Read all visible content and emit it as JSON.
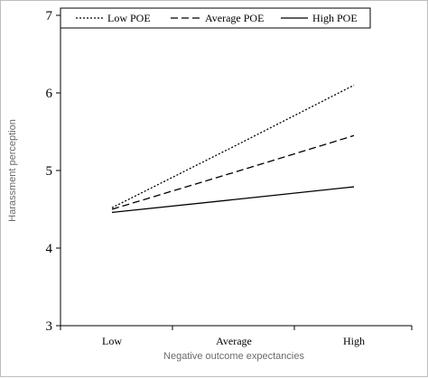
{
  "chart_data": {
    "type": "line",
    "title": "",
    "xlabel": "Negative outcome expectancies",
    "ylabel": "Harassment perception",
    "categories": [
      "Low",
      "Average",
      "High"
    ],
    "yticks": [
      "3",
      "4",
      "5",
      "6",
      "7"
    ],
    "ylim": [
      3,
      7
    ],
    "grid": false,
    "legend_position": "top",
    "series": [
      {
        "name": "Low POE",
        "style": "dotted",
        "color": "#000000",
        "values": [
          4.52,
          5.31,
          6.1
        ]
      },
      {
        "name": "Average POE",
        "style": "dashed",
        "color": "#000000",
        "values": [
          4.5,
          4.975,
          5.45
        ]
      },
      {
        "name": "High POE",
        "style": "solid",
        "color": "#000000",
        "values": [
          4.46,
          4.625,
          4.79
        ]
      }
    ]
  }
}
